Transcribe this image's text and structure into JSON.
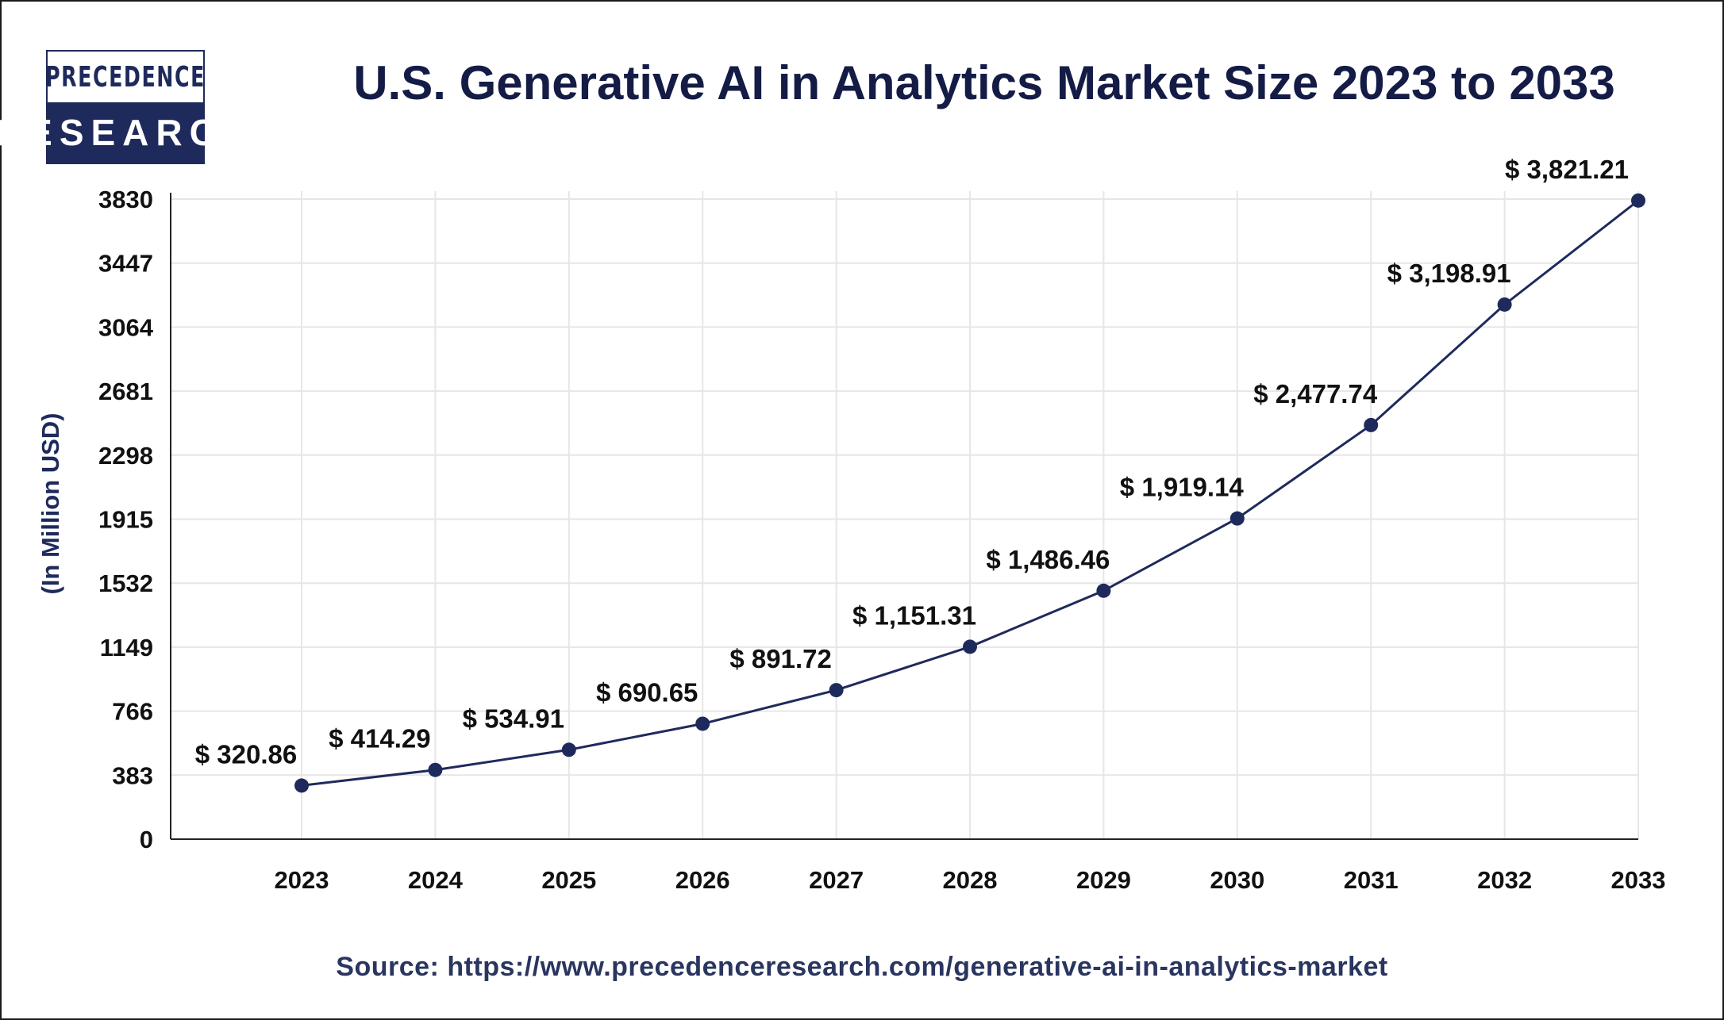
{
  "logo": {
    "line1": "PRECEDENCE",
    "line2": "RESEARCH"
  },
  "source": "Source: https://www.precedenceresearch.com/generative-ai-in-analytics-market",
  "chart_data": {
    "type": "line",
    "title": "U.S. Generative AI in Analytics Market Size 2023 to 2033",
    "xlabel": "",
    "ylabel": "(In Million USD)",
    "categories": [
      "2023",
      "2024",
      "2025",
      "2026",
      "2027",
      "2028",
      "2029",
      "2030",
      "2031",
      "2032",
      "2033"
    ],
    "values": [
      320.86,
      414.29,
      534.91,
      690.65,
      891.72,
      1151.31,
      1486.46,
      1919.14,
      2477.74,
      3198.91,
      3821.21
    ],
    "data_labels": [
      "$ 320.86",
      "$ 414.29",
      "$ 534.91",
      "$ 690.65",
      "$ 891.72",
      "$ 1,151.31",
      "$ 1,486.46",
      "$ 1,919.14",
      "$ 2,477.74",
      "$ 3,198.91",
      "$ 3,821.21"
    ],
    "yticks": [
      "0",
      "383",
      "766",
      "1149",
      "1532",
      "1915",
      "2298",
      "2681",
      "3064",
      "3447",
      "3830"
    ],
    "ylim": [
      0,
      3830
    ],
    "grid": true,
    "line_color": "#1f2a5c",
    "marker_color": "#1f2a5c"
  }
}
